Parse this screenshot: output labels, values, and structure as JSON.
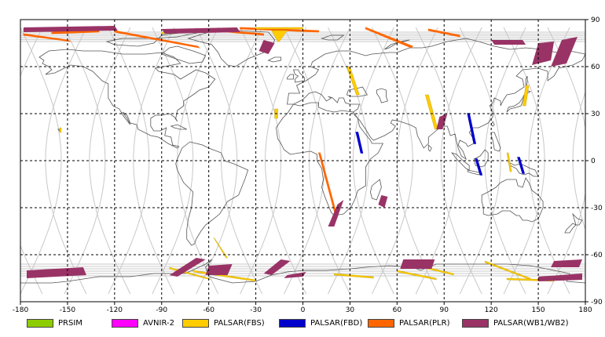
{
  "map": {
    "x_ticks": [
      -180,
      -150,
      -120,
      -90,
      -60,
      -30,
      0,
      30,
      60,
      90,
      120,
      150,
      180
    ],
    "y_ticks": [
      90,
      60,
      30,
      0,
      -30,
      -60,
      -90
    ],
    "x_range": [
      -180,
      180
    ],
    "y_range": [
      -90,
      90
    ],
    "grid": "dashed",
    "orbit_track_color": "#c8c8c8",
    "land_outline_color": "#555555"
  },
  "legend": {
    "placement": "bottom",
    "items": [
      {
        "label": "PRSIM",
        "color": "#8ccc00"
      },
      {
        "label": "AVNIR-2",
        "color": "#ff00ff"
      },
      {
        "label": "PALSAR(FBS)",
        "color": "#ffcc00"
      },
      {
        "label": "PALSAR(FBD)",
        "color": "#0000cc"
      },
      {
        "label": "PALSAR(PLR)",
        "color": "#ff6600"
      },
      {
        "label": "PALSAR(WB1/WB2)",
        "color": "#993366"
      }
    ]
  },
  "swaths": {
    "wb": [
      {
        "pts": [
          [
            -178,
            85
          ],
          [
            -120,
            86
          ],
          [
            -118,
            83
          ],
          [
            -178,
            82
          ]
        ]
      },
      {
        "pts": [
          [
            -90,
            84
          ],
          [
            -42,
            85
          ],
          [
            -40,
            82
          ],
          [
            -88,
            81
          ]
        ]
      },
      {
        "pts": [
          [
            -25,
            77
          ],
          [
            -18,
            75
          ],
          [
            -22,
            68
          ],
          [
            -28,
            70
          ]
        ]
      },
      {
        "pts": [
          [
            120,
            77
          ],
          [
            140,
            77
          ],
          [
            142,
            74
          ],
          [
            122,
            74
          ]
        ]
      },
      {
        "pts": [
          [
            150,
            75
          ],
          [
            160,
            76
          ],
          [
            158,
            64
          ],
          [
            146,
            61
          ]
        ]
      },
      {
        "pts": [
          [
            165,
            77
          ],
          [
            175,
            79
          ],
          [
            168,
            62
          ],
          [
            158,
            60
          ]
        ]
      },
      {
        "pts": [
          [
            87,
            28
          ],
          [
            92,
            30
          ],
          [
            89,
            20
          ],
          [
            85,
            20
          ]
        ]
      },
      {
        "pts": [
          [
            22,
            -28
          ],
          [
            26,
            -25
          ],
          [
            20,
            -42
          ],
          [
            16,
            -42
          ]
        ]
      },
      {
        "pts": [
          [
            50,
            -22
          ],
          [
            54,
            -23
          ],
          [
            52,
            -30
          ],
          [
            48,
            -28
          ]
        ]
      },
      {
        "pts": [
          [
            -176,
            -70
          ],
          [
            -140,
            -68
          ],
          [
            -138,
            -73
          ],
          [
            -176,
            -75
          ]
        ]
      },
      {
        "pts": [
          [
            -85,
            -73
          ],
          [
            -68,
            -62
          ],
          [
            -62,
            -63
          ],
          [
            -80,
            -74
          ]
        ]
      },
      {
        "pts": [
          [
            -60,
            -67
          ],
          [
            -45,
            -66
          ],
          [
            -48,
            -73
          ],
          [
            -62,
            -73
          ]
        ]
      },
      {
        "pts": [
          [
            -25,
            -72
          ],
          [
            -14,
            -63
          ],
          [
            -8,
            -64
          ],
          [
            -20,
            -73
          ]
        ]
      },
      {
        "pts": [
          [
            -10,
            -73
          ],
          [
            2,
            -71
          ],
          [
            0,
            -74
          ],
          [
            -12,
            -75
          ]
        ]
      },
      {
        "pts": [
          [
            64,
            -63
          ],
          [
            84,
            -63
          ],
          [
            82,
            -69
          ],
          [
            62,
            -69
          ]
        ]
      },
      {
        "pts": [
          [
            160,
            -64
          ],
          [
            178,
            -63
          ],
          [
            176,
            -68
          ],
          [
            158,
            -68
          ]
        ]
      },
      {
        "pts": [
          [
            150,
            -74
          ],
          [
            178,
            -72
          ],
          [
            178,
            -76
          ],
          [
            150,
            -77
          ]
        ]
      }
    ],
    "plr": [
      {
        "pts": [
          [
            -178,
            84
          ],
          [
            -150,
            83
          ],
          [
            -148,
            82
          ],
          [
            -178,
            83
          ]
        ]
      },
      {
        "pts": [
          [
            -178,
            81
          ],
          [
            -150,
            77
          ],
          [
            -148,
            76
          ],
          [
            -178,
            80
          ]
        ]
      },
      {
        "pts": [
          [
            -160,
            82
          ],
          [
            -130,
            83
          ],
          [
            -130,
            82
          ],
          [
            -160,
            81
          ]
        ]
      },
      {
        "pts": [
          [
            -120,
            83
          ],
          [
            -67,
            73
          ],
          [
            -66,
            72
          ],
          [
            -120,
            82
          ]
        ]
      },
      {
        "pts": [
          [
            -60,
            84
          ],
          [
            -25,
            81
          ],
          [
            -25,
            80
          ],
          [
            -60,
            83
          ]
        ]
      },
      {
        "pts": [
          [
            -40,
            85
          ],
          [
            10,
            83
          ],
          [
            10,
            82
          ],
          [
            -40,
            84
          ]
        ]
      },
      {
        "pts": [
          [
            40,
            85
          ],
          [
            70,
            73
          ],
          [
            69,
            72
          ],
          [
            40,
            84
          ]
        ]
      },
      {
        "pts": [
          [
            80,
            84
          ],
          [
            100,
            80
          ],
          [
            100,
            79
          ],
          [
            80,
            83
          ]
        ]
      },
      {
        "pts": [
          [
            10,
            5
          ],
          [
            21,
            -36
          ],
          [
            22,
            -36
          ],
          [
            11,
            5
          ]
        ]
      }
    ],
    "fbs": [
      {
        "pts": [
          [
            -155,
            21
          ],
          [
            -154,
            21
          ],
          [
            -154,
            18
          ],
          [
            -155,
            18
          ]
        ]
      },
      {
        "pts": [
          [
            -90,
            82
          ],
          [
            -60,
            83
          ],
          [
            -60,
            82
          ],
          [
            -90,
            81
          ]
        ]
      },
      {
        "pts": [
          [
            -30,
            85
          ],
          [
            0,
            85
          ],
          [
            0,
            84
          ],
          [
            -30,
            84
          ]
        ]
      },
      {
        "pts": [
          [
            -20,
            83
          ],
          [
            -10,
            83
          ],
          [
            -15,
            76
          ],
          [
            -16,
            76
          ]
        ]
      },
      {
        "pts": [
          [
            -18,
            33
          ],
          [
            -16,
            33
          ],
          [
            -16,
            27
          ],
          [
            -18,
            27
          ]
        ]
      },
      {
        "pts": [
          [
            28,
            60
          ],
          [
            30,
            60
          ],
          [
            36,
            42
          ],
          [
            34,
            42
          ]
        ]
      },
      {
        "pts": [
          [
            78,
            42
          ],
          [
            80,
            42
          ],
          [
            86,
            20
          ],
          [
            84,
            20
          ]
        ]
      },
      {
        "pts": [
          [
            142,
            48
          ],
          [
            144,
            48
          ],
          [
            142,
            35
          ],
          [
            140,
            35
          ]
        ]
      },
      {
        "pts": [
          [
            130,
            5
          ],
          [
            131,
            5
          ],
          [
            133,
            -7
          ],
          [
            132,
            -7
          ]
        ]
      },
      {
        "pts": [
          [
            -57,
            -49
          ],
          [
            -56,
            -50
          ],
          [
            -48,
            -62
          ],
          [
            -49,
            -62
          ]
        ]
      },
      {
        "pts": [
          [
            -85,
            -68
          ],
          [
            -60,
            -75
          ],
          [
            -59,
            -76
          ],
          [
            -85,
            -69
          ]
        ]
      },
      {
        "pts": [
          [
            -70,
            -70
          ],
          [
            -30,
            -76
          ],
          [
            -30,
            -77
          ],
          [
            -70,
            -71
          ]
        ]
      },
      {
        "pts": [
          [
            20,
            -72
          ],
          [
            45,
            -74
          ],
          [
            45,
            -75
          ],
          [
            20,
            -73
          ]
        ]
      },
      {
        "pts": [
          [
            60,
            -70
          ],
          [
            85,
            -75
          ],
          [
            85,
            -76
          ],
          [
            60,
            -71
          ]
        ]
      },
      {
        "pts": [
          [
            75,
            -67
          ],
          [
            96,
            -72
          ],
          [
            96,
            -73
          ],
          [
            75,
            -68
          ]
        ]
      },
      {
        "pts": [
          [
            116,
            -64
          ],
          [
            145,
            -75
          ],
          [
            145,
            -76
          ],
          [
            116,
            -65
          ]
        ]
      },
      {
        "pts": [
          [
            130,
            -75
          ],
          [
            160,
            -76
          ],
          [
            160,
            -77
          ],
          [
            130,
            -76
          ]
        ]
      }
    ],
    "fbd": [
      {
        "pts": [
          [
            34,
            18
          ],
          [
            35,
            18
          ],
          [
            38,
            5
          ],
          [
            37,
            5
          ]
        ]
      },
      {
        "pts": [
          [
            105,
            30
          ],
          [
            106,
            30
          ],
          [
            110,
            11
          ],
          [
            109,
            11
          ]
        ]
      },
      {
        "pts": [
          [
            110,
            1
          ],
          [
            111,
            1
          ],
          [
            114,
            -9
          ],
          [
            113,
            -9
          ]
        ]
      },
      {
        "pts": [
          [
            137,
            2
          ],
          [
            138,
            2
          ],
          [
            141,
            -8
          ],
          [
            140,
            -8
          ]
        ]
      }
    ]
  }
}
